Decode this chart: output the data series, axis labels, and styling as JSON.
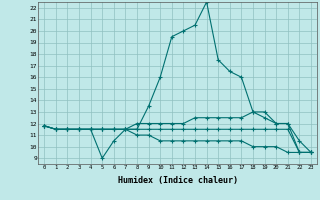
{
  "xlabel": "Humidex (Indice chaleur)",
  "ylabel": "",
  "bg_color": "#c0e8e8",
  "grid_color": "#90c0c0",
  "line_color": "#007070",
  "xlim": [
    -0.5,
    23.5
  ],
  "ylim": [
    8.5,
    22.5
  ],
  "yticks": [
    9,
    10,
    11,
    12,
    13,
    14,
    15,
    16,
    17,
    18,
    19,
    20,
    21,
    22
  ],
  "xticks": [
    0,
    1,
    2,
    3,
    4,
    5,
    6,
    7,
    8,
    9,
    10,
    11,
    12,
    13,
    14,
    15,
    16,
    17,
    18,
    19,
    20,
    21,
    22,
    23
  ],
  "lines": [
    {
      "x": [
        0,
        1,
        2,
        3,
        4,
        5,
        6,
        7,
        8,
        9,
        10,
        11,
        12,
        13,
        14,
        15,
        16,
        17,
        18,
        19,
        20,
        21,
        22,
        23
      ],
      "y": [
        11.8,
        11.5,
        11.5,
        11.5,
        11.5,
        9.0,
        10.5,
        11.5,
        11.5,
        13.5,
        16.0,
        19.5,
        20.0,
        20.5,
        22.5,
        17.5,
        16.5,
        16.0,
        13.0,
        12.5,
        12.0,
        12.0,
        10.5,
        9.5
      ]
    },
    {
      "x": [
        0,
        1,
        2,
        3,
        4,
        5,
        6,
        7,
        8,
        9,
        10,
        11,
        12,
        13,
        14,
        15,
        16,
        17,
        18,
        19,
        20,
        21,
        22,
        23
      ],
      "y": [
        11.8,
        11.5,
        11.5,
        11.5,
        11.5,
        11.5,
        11.5,
        11.5,
        12.0,
        12.0,
        12.0,
        12.0,
        12.0,
        12.5,
        12.5,
        12.5,
        12.5,
        12.5,
        13.0,
        13.0,
        12.0,
        12.0,
        9.5,
        9.5
      ]
    },
    {
      "x": [
        0,
        1,
        2,
        3,
        4,
        5,
        6,
        7,
        8,
        9,
        10,
        11,
        12,
        13,
        14,
        15,
        16,
        17,
        18,
        19,
        20,
        21,
        22,
        23
      ],
      "y": [
        11.8,
        11.5,
        11.5,
        11.5,
        11.5,
        11.5,
        11.5,
        11.5,
        11.0,
        11.0,
        10.5,
        10.5,
        10.5,
        10.5,
        10.5,
        10.5,
        10.5,
        10.5,
        10.0,
        10.0,
        10.0,
        9.5,
        9.5,
        9.5
      ]
    },
    {
      "x": [
        0,
        1,
        2,
        3,
        4,
        5,
        6,
        7,
        8,
        9,
        10,
        11,
        12,
        13,
        14,
        15,
        16,
        17,
        18,
        19,
        20,
        21,
        22,
        23
      ],
      "y": [
        11.8,
        11.5,
        11.5,
        11.5,
        11.5,
        11.5,
        11.5,
        11.5,
        11.5,
        11.5,
        11.5,
        11.5,
        11.5,
        11.5,
        11.5,
        11.5,
        11.5,
        11.5,
        11.5,
        11.5,
        11.5,
        11.5,
        9.5,
        9.5
      ]
    }
  ]
}
